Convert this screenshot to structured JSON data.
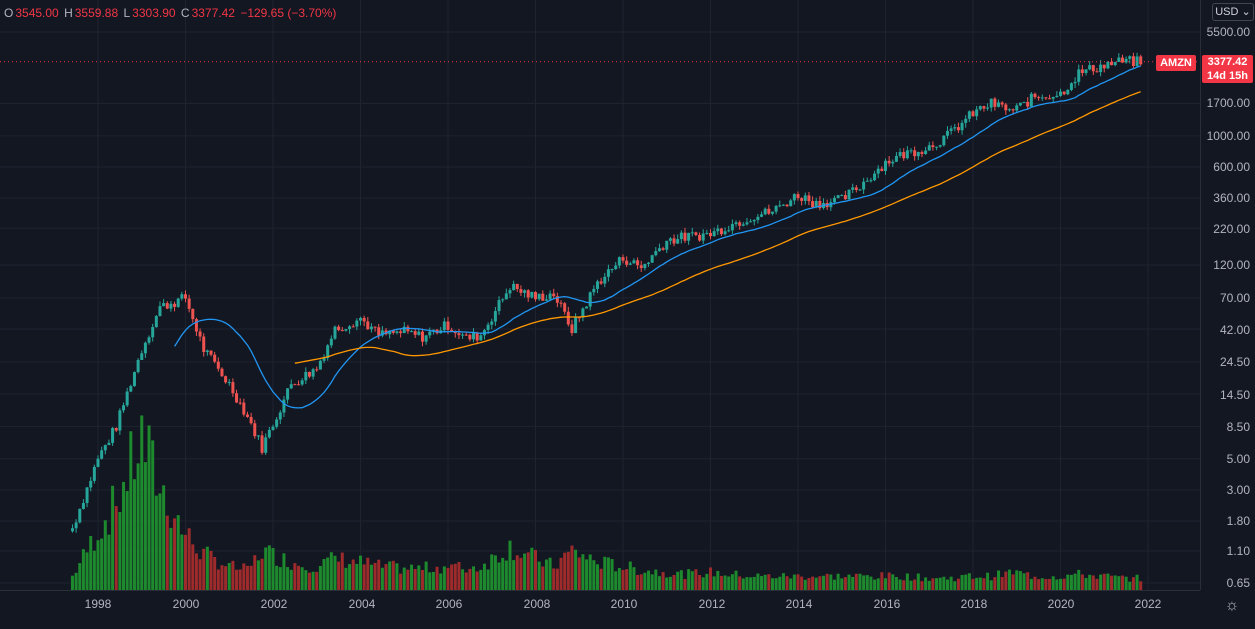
{
  "legend": {
    "open_key": "O",
    "open": "3545.00",
    "high_key": "H",
    "high": "3559.88",
    "low_key": "L",
    "low": "3303.90",
    "close_key": "C",
    "close": "3377.42",
    "change": "−129.65 (−3.70%)"
  },
  "price_axis": {
    "currency": "USD",
    "ticks": [
      "5500.00",
      "3377.42",
      "1700.00",
      "1000.00",
      "600.00",
      "360.00",
      "220.00",
      "120.00",
      "70.00",
      "42.00",
      "24.50",
      "14.50",
      "8.50",
      "5.00",
      "3.00",
      "1.80",
      "1.10",
      "0.65"
    ]
  },
  "symbol": "AMZN",
  "last_price": "3377.42",
  "countdown": "14d 15h",
  "time_axis": {
    "ticks": [
      "1998",
      "2000",
      "2002",
      "2004",
      "2006",
      "2008",
      "2010",
      "2012",
      "2014",
      "2016",
      "2018",
      "2020",
      "2022"
    ]
  },
  "colors": {
    "background": "#131722",
    "up": "#26a69a",
    "down": "#ef5350",
    "volume_up": "#1e8a2e",
    "volume_down": "#9e2b2b",
    "ma_fast": "#2196f3",
    "ma_slow": "#ff9800",
    "last_price": "#f23645"
  },
  "chart_data": {
    "type": "candlestick",
    "symbol": "AMZN",
    "interval": "monthly",
    "scale": "log",
    "ylim": [
      0.55,
      6500
    ],
    "x": [
      "1997-06",
      "1998-01",
      "1998-06",
      "1999-01",
      "1999-06",
      "2000-01",
      "2000-06",
      "2001-01",
      "2001-06",
      "2001-10",
      "2002-06",
      "2003-01",
      "2003-06",
      "2004-01",
      "2004-06",
      "2005-01",
      "2005-06",
      "2006-01",
      "2006-06",
      "2006-10",
      "2007-06",
      "2008-01",
      "2008-06",
      "2008-11",
      "2009-06",
      "2010-01",
      "2010-06",
      "2011-01",
      "2011-06",
      "2012-01",
      "2012-06",
      "2013-01",
      "2013-06",
      "2014-01",
      "2014-06",
      "2015-01",
      "2015-06",
      "2016-01",
      "2016-06",
      "2017-01",
      "2017-06",
      "2018-01",
      "2018-06",
      "2018-12",
      "2019-06",
      "2020-01",
      "2020-06",
      "2021-01",
      "2021-06",
      "2021-11"
    ],
    "close": [
      1.6,
      5.0,
      8.5,
      30,
      60,
      70,
      30,
      17,
      10,
      6,
      17,
      22,
      42,
      50,
      38,
      40,
      37,
      45,
      36,
      38,
      85,
      70,
      75,
      42,
      90,
      135,
      115,
      180,
      190,
      200,
      230,
      270,
      290,
      380,
      330,
      350,
      440,
      650,
      740,
      840,
      1000,
      1450,
      1700,
      1500,
      1900,
      2000,
      2800,
      3200,
      3400,
      3377.42
    ],
    "volume": [
      0.35,
      1.5,
      2.2,
      3.8,
      2.6,
      1.4,
      0.9,
      0.6,
      0.5,
      1.0,
      0.7,
      0.6,
      0.8,
      0.7,
      0.6,
      0.55,
      0.55,
      0.6,
      0.55,
      0.6,
      1.1,
      0.8,
      0.6,
      1.0,
      0.7,
      0.6,
      0.5,
      0.45,
      0.4,
      0.45,
      0.4,
      0.35,
      0.35,
      0.35,
      0.35,
      0.35,
      0.35,
      0.35,
      0.35,
      0.3,
      0.3,
      0.35,
      0.35,
      0.45,
      0.35,
      0.35,
      0.4,
      0.35,
      0.3,
      0.3
    ],
    "ma_fast": {
      "start": "1999-09",
      "color": "#2196f3"
    },
    "ma_slow": {
      "start": "2002-06",
      "color": "#ff9800"
    },
    "last": 3377.42
  }
}
